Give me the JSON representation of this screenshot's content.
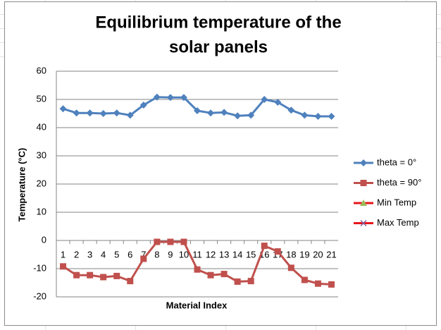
{
  "chart_data": {
    "type": "line",
    "title": "Equilibrium temperature of the solar panels",
    "x_label": "Material Index",
    "y_label": "Temperature (°C)",
    "categories": [
      1,
      2,
      3,
      4,
      5,
      6,
      7,
      8,
      9,
      10,
      11,
      12,
      13,
      14,
      15,
      16,
      17,
      18,
      19,
      20,
      21
    ],
    "series": [
      {
        "name": "theta = 0°",
        "color": "#4f81bd",
        "marker": "diamond",
        "marker_color": "#4f81bd",
        "values": [
          46.7,
          45.2,
          45.2,
          45.0,
          45.2,
          44.4,
          48.0,
          50.8,
          50.7,
          50.7,
          46.0,
          45.2,
          45.4,
          44.2,
          44.4,
          50.0,
          49.0,
          46.2,
          44.4,
          44.0,
          44.0
        ]
      },
      {
        "name": "theta = 90°",
        "color": "#c0504d",
        "marker": "square",
        "marker_color": "#c0504d",
        "values": [
          -9.2,
          -12.3,
          -12.3,
          -13.0,
          -12.6,
          -14.4,
          -6.5,
          -0.5,
          -0.5,
          -0.5,
          -10.3,
          -12.3,
          -11.9,
          -14.6,
          -14.4,
          -1.9,
          -3.9,
          -9.7,
          -14.0,
          -15.3,
          -15.6
        ]
      },
      {
        "name": "Min Temp",
        "color": "#e8161b",
        "marker": "triangle",
        "marker_color": "#9bbb59",
        "values": [
          null,
          null,
          null,
          null,
          null,
          null,
          null,
          null,
          null,
          null,
          null,
          null,
          null,
          null,
          null,
          null,
          null,
          null,
          null,
          null,
          null
        ]
      },
      {
        "name": "Max Temp",
        "color": "#e8161b",
        "marker": "x",
        "marker_color": "#8064a2",
        "values": [
          null,
          null,
          null,
          null,
          null,
          null,
          null,
          null,
          null,
          null,
          null,
          null,
          null,
          null,
          null,
          null,
          null,
          null,
          null,
          null,
          null
        ]
      }
    ],
    "ylim": [
      -20,
      60
    ],
    "yticks": [
      -20,
      -10,
      0,
      10,
      20,
      30,
      40,
      50,
      60
    ],
    "grid": true,
    "legend": "right"
  }
}
